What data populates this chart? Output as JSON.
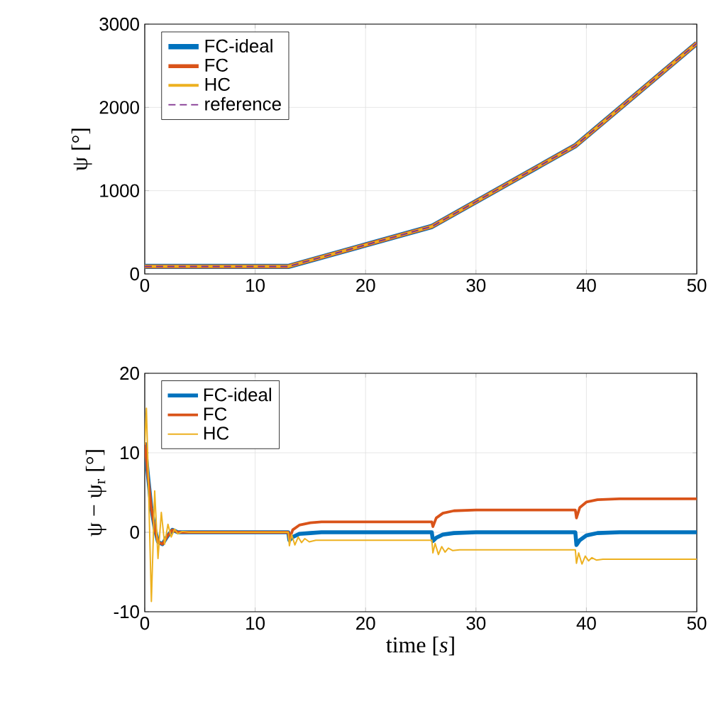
{
  "chart_data": [
    {
      "type": "line",
      "ylabel": "ψ [°]",
      "xlim": [
        0,
        50
      ],
      "ylim": [
        0,
        3000
      ],
      "xticks": [
        0,
        10,
        20,
        30,
        40,
        50
      ],
      "yticks": [
        0,
        1000,
        2000,
        3000
      ],
      "grid": true,
      "legend": "top left",
      "series": [
        {
          "name": "FC-ideal",
          "color": "#0072bd",
          "line_style": "solid",
          "x": [
            0,
            13,
            26,
            39,
            50
          ],
          "values": [
            90,
            90,
            570,
            1540,
            2770
          ]
        },
        {
          "name": "FC",
          "color": "#d95319",
          "line_style": "solid",
          "x": [
            0,
            13,
            26,
            39,
            50
          ],
          "values": [
            90,
            90,
            570,
            1540,
            2770
          ]
        },
        {
          "name": "HC",
          "color": "#edb120",
          "line_style": "solid",
          "x": [
            0,
            13,
            26,
            39,
            50
          ],
          "values": [
            90,
            90,
            570,
            1540,
            2770
          ]
        },
        {
          "name": "reference",
          "color": "#7e2f8e",
          "line_style": "dashed",
          "x": [
            0,
            13,
            26,
            39,
            50
          ],
          "values": [
            90,
            90,
            570,
            1540,
            2770
          ]
        }
      ]
    },
    {
      "type": "line",
      "xlabel": "time [*s*]",
      "ylabel": "ψ − ψ$_{r}$ [°]",
      "xlim": [
        0,
        50
      ],
      "ylim": [
        -10,
        20
      ],
      "xticks": [
        0,
        10,
        20,
        30,
        40,
        50
      ],
      "yticks": [
        -10,
        0,
        10,
        20
      ],
      "grid": true,
      "legend": "top left",
      "series": [
        {
          "name": "FC-ideal",
          "color": "#0072bd",
          "line_style": "solid",
          "x": [
            0,
            0.3,
            0.6,
            0.9,
            1.2,
            1.6,
            2.0,
            2.5,
            3,
            4,
            13,
            13.1,
            13.4,
            14,
            15,
            16,
            26,
            26.1,
            26.4,
            27,
            28,
            30,
            39,
            39.1,
            39.4,
            40,
            41,
            43,
            50
          ],
          "values": [
            11.3,
            7,
            3,
            0.5,
            -1.2,
            -1.5,
            -0.6,
            0.3,
            0,
            0,
            0,
            -1,
            -0.6,
            -0.2,
            -0.1,
            0,
            0,
            -1.1,
            -0.7,
            -0.3,
            -0.1,
            0,
            0,
            -1.6,
            -1,
            -0.4,
            -0.1,
            0,
            0
          ]
        },
        {
          "name": "FC",
          "color": "#d95319",
          "line_style": "solid",
          "x": [
            0,
            0.3,
            0.6,
            0.9,
            1.2,
            1.6,
            2.0,
            2.5,
            3,
            4,
            13,
            13.1,
            13.4,
            14,
            15,
            16,
            26,
            26.1,
            26.4,
            27,
            28,
            30,
            39,
            39.1,
            39.4,
            40,
            41,
            43,
            50
          ],
          "values": [
            11.3,
            7,
            3,
            0.5,
            -1.2,
            -1.5,
            -0.6,
            0.3,
            0,
            0,
            0,
            -0.9,
            0.3,
            0.9,
            1.2,
            1.3,
            1.3,
            0.7,
            1.8,
            2.4,
            2.7,
            2.8,
            2.8,
            1.8,
            3.1,
            3.8,
            4.1,
            4.2,
            4.2
          ]
        },
        {
          "name": "HC",
          "color": "#edb120",
          "line_style": "solid",
          "x": [
            0,
            0.15,
            0.3,
            0.6,
            0.9,
            1.2,
            1.5,
            1.8,
            2.1,
            2.4,
            2.7,
            3,
            3.4,
            4,
            13,
            13.1,
            13.3,
            13.6,
            13.9,
            14.2,
            14.5,
            14.9,
            15.5,
            16.5,
            26,
            26.1,
            26.3,
            26.6,
            26.9,
            27.2,
            27.5,
            27.9,
            28.5,
            29.5,
            39,
            39.1,
            39.3,
            39.6,
            39.9,
            40.2,
            40.5,
            40.9,
            41.5,
            42.5,
            50
          ],
          "values": [
            11,
            15.6,
            8,
            -8.7,
            5.2,
            -3.3,
            2.5,
            -1.5,
            1,
            -0.6,
            0.4,
            -0.2,
            0.1,
            0,
            0,
            -1.7,
            -0.3,
            -1.6,
            -0.6,
            -1.3,
            -0.8,
            -1.2,
            -1,
            -1,
            -1,
            -2.6,
            -1.4,
            -2.8,
            -1.8,
            -2.5,
            -2,
            -2.3,
            -2.2,
            -2.2,
            -2.2,
            -3.9,
            -2.6,
            -4,
            -3,
            -3.6,
            -3.2,
            -3.5,
            -3.4,
            -3.4,
            -3.4
          ]
        }
      ]
    }
  ]
}
